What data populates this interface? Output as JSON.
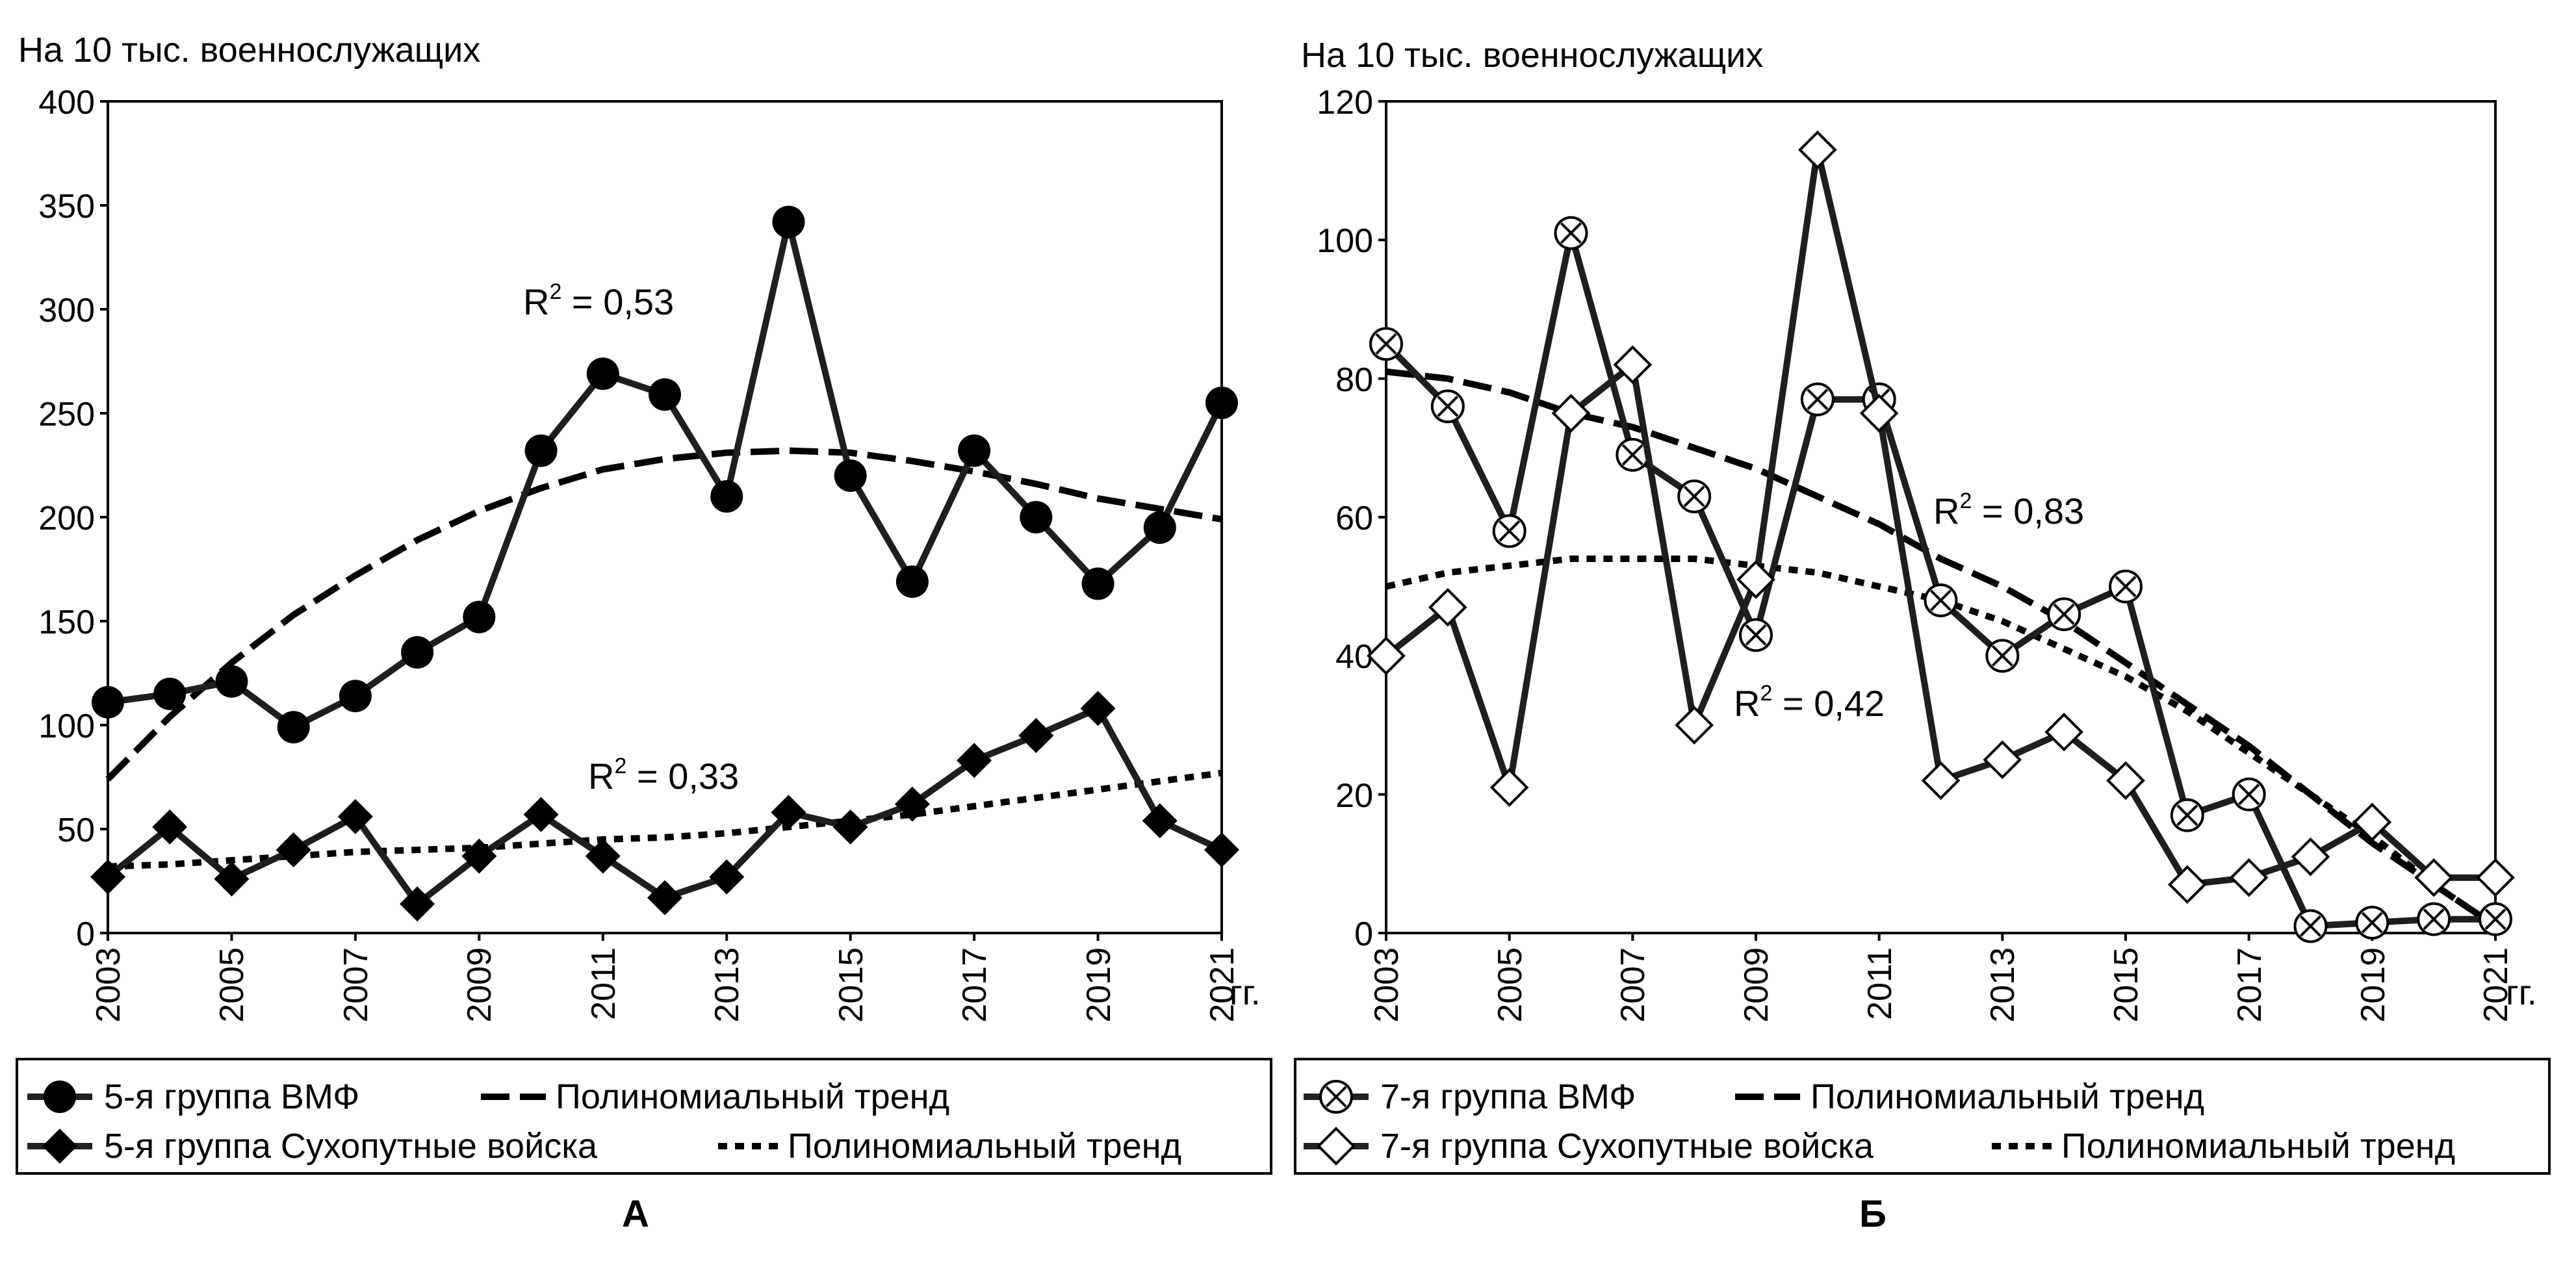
{
  "chart_data": [
    {
      "type": "line",
      "panel_label": "А",
      "ylabel": "На 10 тыс.  военнослужащих",
      "x_unit": "гг.",
      "ylim": [
        0,
        400
      ],
      "yticks": [
        0,
        50,
        100,
        150,
        200,
        250,
        300,
        350,
        400
      ],
      "xlim": [
        2003,
        2021
      ],
      "xticks": [
        "2003",
        "2005",
        "2007",
        "2009",
        "2011",
        "2013",
        "2015",
        "2017",
        "2019",
        "2021"
      ],
      "grid": false,
      "legend_position": "bottom",
      "x": [
        2003,
        2004,
        2005,
        2006,
        2007,
        2008,
        2009,
        2010,
        2011,
        2012,
        2013,
        2014,
        2015,
        2016,
        2017,
        2018,
        2019,
        2020,
        2021
      ],
      "series": [
        {
          "name": "5-я группа ВМФ",
          "marker": "filled-circle",
          "values": [
            111,
            115,
            121,
            99,
            114,
            135,
            152,
            232,
            269,
            259,
            210,
            342,
            220,
            169,
            232,
            200,
            168,
            195,
            255
          ],
          "trend": {
            "name": "Полиномиальный тренд",
            "style": "dashed",
            "values": [
              74,
              104,
              130,
              153,
              172,
              189,
              203,
              214,
              223,
              228,
              231,
              232,
              231,
              227,
              222,
              216,
              209,
              204,
              199
            ]
          },
          "r2_label": "R",
          "r2_sup": "2",
          "r2_value": " = 0,53"
        },
        {
          "name": "5-я группа Сухопутные войска",
          "marker": "filled-diamond",
          "values": [
            27,
            51,
            26,
            40,
            56,
            14,
            37,
            57,
            37,
            17,
            27,
            58,
            51,
            62,
            83,
            95,
            108,
            54,
            40
          ],
          "trend": {
            "name": "Полиномиальный тренд",
            "style": "dotted",
            "values": [
              32,
              33,
              35,
              37,
              39,
              40,
              41,
              43,
              45,
              46,
              48,
              51,
              54,
              57,
              61,
              65,
              69,
              73,
              77
            ]
          },
          "r2_label": "R",
          "r2_sup": "2",
          "r2_value": " = 0,33"
        }
      ]
    },
    {
      "type": "line",
      "panel_label": "Б",
      "ylabel": "На 10 тыс.  военнослужащих",
      "x_unit": "гг.",
      "ylim": [
        0,
        120
      ],
      "yticks": [
        0,
        20,
        40,
        60,
        80,
        100,
        120
      ],
      "xlim": [
        2003,
        2021
      ],
      "xticks": [
        "2003",
        "2005",
        "2007",
        "2009",
        "2011",
        "2013",
        "2015",
        "2017",
        "2019",
        "2021"
      ],
      "grid": false,
      "legend_position": "bottom",
      "x": [
        2003,
        2004,
        2005,
        2006,
        2007,
        2008,
        2009,
        2010,
        2011,
        2012,
        2013,
        2014,
        2015,
        2016,
        2017,
        2018,
        2019,
        2020,
        2021
      ],
      "series": [
        {
          "name": "7-я группа ВМФ",
          "marker": "circle-cross",
          "values": [
            85,
            76,
            58,
            101,
            69,
            63,
            43,
            77,
            77,
            48,
            40,
            46,
            50,
            17,
            20,
            1,
            1.5,
            2,
            2
          ],
          "trend": {
            "name": "Полиномиальный тренд",
            "style": "dashed",
            "values": [
              81,
              80,
              78,
              75,
              73,
              70,
              67,
              63,
              59,
              54,
              50,
              45,
              39,
              33,
              27,
              20,
              13,
              7,
              1
            ]
          },
          "r2_label": "R",
          "r2_sup": "2",
          "r2_value": " = 0,83"
        },
        {
          "name": "7-я группа Сухопутные войска",
          "marker": "open-diamond",
          "values": [
            40,
            47,
            21,
            75,
            82,
            30,
            51,
            113,
            75,
            22,
            25,
            29,
            22,
            7,
            8,
            11,
            16,
            8,
            8
          ],
          "trend": {
            "name": "Полиномиальный тренд",
            "style": "dotted",
            "values": [
              50,
              52,
              53,
              54,
              54,
              54,
              53,
              52,
              50,
              48,
              45,
              41,
              37,
              32,
              26,
              20,
              14,
              7,
              1
            ]
          },
          "r2_label": "R",
          "r2_sup": "2",
          "r2_value": " = 0,42"
        }
      ]
    }
  ]
}
